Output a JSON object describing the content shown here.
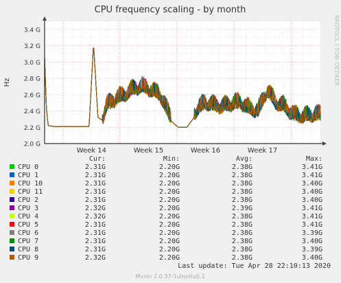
{
  "chart_data": {
    "type": "line",
    "title": "CPU frequency scaling - by month",
    "ylabel": "Hz",
    "side_label": "RRDTOOL / TOBI OETIKER",
    "ylim": [
      2.0,
      3.5
    ],
    "yticks": [
      "2.0 G",
      "2.2 G",
      "2.4 G",
      "2.6 G",
      "2.8 G",
      "3.0 G",
      "3.2 G",
      "3.4 G"
    ],
    "yticks_values": [
      2.0,
      2.2,
      2.4,
      2.6,
      2.8,
      3.0,
      3.2,
      3.4
    ],
    "xticks": [
      "Week 14",
      "Week 15",
      "Week 16",
      "Week 17"
    ],
    "grid": true,
    "series_note": "12 overlapping series (CPU 0 - CPU 11) with near-identical traces",
    "x": [
      0,
      0.2,
      0.4,
      1,
      3,
      5,
      5.5,
      6,
      6.3,
      6.6,
      7,
      8,
      9,
      10,
      11,
      12,
      13,
      14,
      15,
      16,
      17,
      18,
      19,
      20,
      21,
      22,
      23,
      24,
      25,
      26,
      27,
      28,
      29,
      30,
      31
    ],
    "y": [
      3.05,
      2.45,
      2.22,
      2.21,
      2.21,
      2.21,
      3.22,
      2.32,
      2.3,
      2.28,
      2.42,
      2.5,
      2.55,
      2.62,
      2.65,
      2.6,
      2.55,
      2.3,
      2.2,
      2.2,
      2.35,
      2.45,
      2.42,
      2.4,
      2.44,
      2.45,
      2.38,
      2.35,
      2.6,
      2.45,
      2.4,
      2.3,
      2.28,
      2.3,
      2.3
    ],
    "series": [
      {
        "name": "CPU 0",
        "color": "#00cc00",
        "cur": "2.31G",
        "min": "2.20G",
        "avg": "2.38G",
        "max": "3.41G"
      },
      {
        "name": "CPU 1",
        "color": "#0066b3",
        "cur": "2.31G",
        "min": "2.20G",
        "avg": "2.38G",
        "max": "3.41G"
      },
      {
        "name": "CPU 10",
        "color": "#ff8000",
        "cur": "2.31G",
        "min": "2.20G",
        "avg": "2.38G",
        "max": "3.40G"
      },
      {
        "name": "CPU 11",
        "color": "#ffcc00",
        "cur": "2.31G",
        "min": "2.20G",
        "avg": "2.38G",
        "max": "3.40G"
      },
      {
        "name": "CPU 2",
        "color": "#330099",
        "cur": "2.31G",
        "min": "2.20G",
        "avg": "2.38G",
        "max": "3.40G"
      },
      {
        "name": "CPU 3",
        "color": "#990099",
        "cur": "2.32G",
        "min": "2.20G",
        "avg": "2.39G",
        "max": "3.41G"
      },
      {
        "name": "CPU 4",
        "color": "#ccff00",
        "cur": "2.32G",
        "min": "2.20G",
        "avg": "2.38G",
        "max": "3.41G"
      },
      {
        "name": "CPU 5",
        "color": "#ff0000",
        "cur": "2.31G",
        "min": "2.20G",
        "avg": "2.38G",
        "max": "3.41G"
      },
      {
        "name": "CPU 6",
        "color": "#808080",
        "cur": "2.31G",
        "min": "2.20G",
        "avg": "2.38G",
        "max": "3.39G"
      },
      {
        "name": "CPU 7",
        "color": "#008f00",
        "cur": "2.31G",
        "min": "2.20G",
        "avg": "2.38G",
        "max": "3.40G"
      },
      {
        "name": "CPU 8",
        "color": "#00487d",
        "cur": "2.31G",
        "min": "2.20G",
        "avg": "2.38G",
        "max": "3.39G"
      },
      {
        "name": "CPU 9",
        "color": "#b35a00",
        "cur": "2.32G",
        "min": "2.20G",
        "avg": "2.38G",
        "max": "3.40G"
      }
    ]
  },
  "legend_headers": {
    "cur": "Cur:",
    "min": "Min:",
    "avg": "Avg:",
    "max": "Max:"
  },
  "last_update": "Last update: Tue Apr 28 22:10:13 2020",
  "footer": "Munin 2.0.37-1ubuntu0.1"
}
